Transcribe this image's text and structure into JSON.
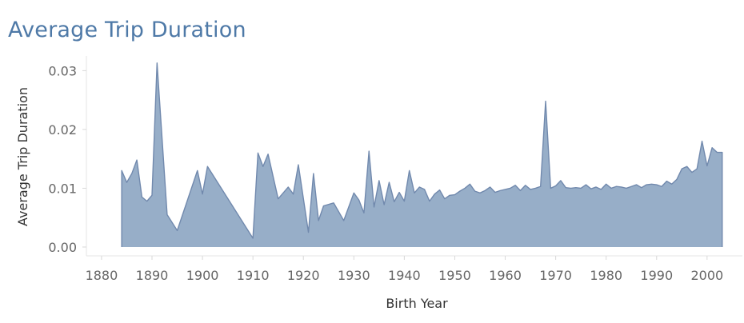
{
  "title": "Average Trip Duration",
  "chart_data": {
    "type": "area",
    "title": "Average Trip Duration",
    "xlabel": "Birth Year",
    "ylabel": "Average Trip Duration",
    "xlim": [
      1877,
      2007
    ],
    "ylim": [
      -0.0015,
      0.0325
    ],
    "x_ticks": [
      "1880",
      "1890",
      "1900",
      "1910",
      "1920",
      "1930",
      "1940",
      "1950",
      "1960",
      "1970",
      "1980",
      "1990",
      "2000"
    ],
    "y_ticks": [
      "0.00",
      "0.01",
      "0.02",
      "0.03"
    ],
    "grid": false,
    "colors": {
      "fill": "#97aec8",
      "line": "#7189ad"
    },
    "series": [
      {
        "x": [
          1884,
          1885,
          1886,
          1887,
          1888,
          1889,
          1890,
          1891,
          1893,
          1895,
          1899,
          1900,
          1901,
          1910,
          1911,
          1912,
          1913,
          1915,
          1917,
          1918,
          1919,
          1921,
          1922,
          1923,
          1924,
          1926,
          1928,
          1930,
          1931,
          1932,
          1933,
          1934,
          1935,
          1936,
          1937,
          1938,
          1939,
          1940,
          1941,
          1942,
          1943,
          1944,
          1945,
          1946,
          1947,
          1948,
          1949,
          1950,
          1951,
          1952,
          1953,
          1954,
          1955,
          1956,
          1957,
          1958,
          1959,
          1960,
          1961,
          1962,
          1963,
          1964,
          1965,
          1966,
          1967,
          1968,
          1969,
          1970,
          1971,
          1972,
          1973,
          1974,
          1975,
          1976,
          1977,
          1978,
          1979,
          1980,
          1981,
          1982,
          1983,
          1984,
          1985,
          1986,
          1987,
          1988,
          1989,
          1990,
          1991,
          1992,
          1993,
          1994,
          1995,
          1996,
          1997,
          1998,
          1999,
          2000,
          2001,
          2002,
          2003
        ],
        "y": [
          0.013,
          0.011,
          0.0125,
          0.0148,
          0.0085,
          0.0078,
          0.0088,
          0.0313,
          0.0055,
          0.0028,
          0.013,
          0.009,
          0.0137,
          0.0015,
          0.016,
          0.0137,
          0.0158,
          0.0082,
          0.0102,
          0.009,
          0.014,
          0.0025,
          0.0125,
          0.0045,
          0.007,
          0.0075,
          0.0045,
          0.0092,
          0.008,
          0.0058,
          0.0163,
          0.0068,
          0.0113,
          0.0072,
          0.011,
          0.0077,
          0.0093,
          0.0078,
          0.013,
          0.0092,
          0.0102,
          0.0098,
          0.0078,
          0.009,
          0.0097,
          0.0082,
          0.0088,
          0.0089,
          0.0095,
          0.01,
          0.0107,
          0.0095,
          0.0092,
          0.0096,
          0.0102,
          0.0093,
          0.0096,
          0.0098,
          0.01,
          0.0105,
          0.0096,
          0.0105,
          0.0098,
          0.01,
          0.0103,
          0.0248,
          0.01,
          0.0104,
          0.0113,
          0.0101,
          0.01,
          0.0101,
          0.01,
          0.0106,
          0.0099,
          0.0102,
          0.0098,
          0.0107,
          0.01,
          0.0103,
          0.0102,
          0.01,
          0.0103,
          0.0106,
          0.0101,
          0.0106,
          0.0107,
          0.0106,
          0.0103,
          0.0112,
          0.0107,
          0.0115,
          0.0133,
          0.0137,
          0.0127,
          0.0133,
          0.018,
          0.0138,
          0.0169,
          0.0161,
          0.0161
        ]
      }
    ]
  }
}
